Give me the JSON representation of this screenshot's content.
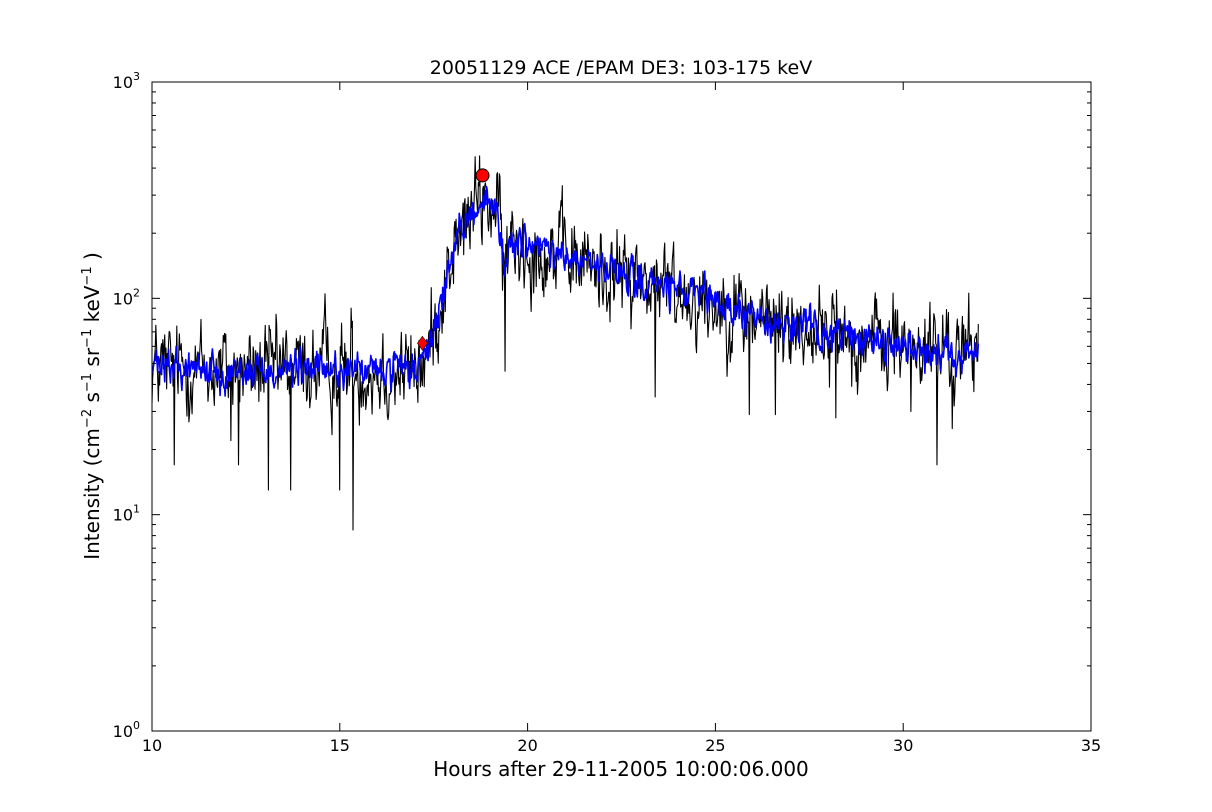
{
  "chart_data": {
    "type": "line",
    "title": "20051129 ACE /EPAM DE3: 103-175 keV",
    "xlabel": "Hours after 29-11-2005 10:00:06.000",
    "ylabel_parts": {
      "prefix": "Intensity (cm",
      "exp1": "−2",
      "s": " s",
      "exp2": "−1",
      "sr": " sr",
      "exp3": "−1",
      "kev": " keV",
      "exp4": "−1",
      "suffix": " )"
    },
    "xlim": [
      10,
      35
    ],
    "ylim": [
      1,
      1000
    ],
    "yscale": "log",
    "grid": false,
    "x_ticks": [
      "10",
      "15",
      "20",
      "25",
      "30",
      "35"
    ],
    "y_ticks": [
      {
        "base": "10",
        "exp": "0"
      },
      {
        "base": "10",
        "exp": "1"
      },
      {
        "base": "10",
        "exp": "2"
      },
      {
        "base": "10",
        "exp": "3"
      }
    ],
    "series": [
      {
        "color": "#000000",
        "role": "raw intensity",
        "envelope_points": [
          [
            10.0,
            48
          ],
          [
            11.0,
            48
          ],
          [
            12.0,
            46
          ],
          [
            13.0,
            47
          ],
          [
            14.0,
            47
          ],
          [
            15.0,
            47
          ],
          [
            16.0,
            46
          ],
          [
            17.0,
            46
          ],
          [
            17.3,
            52
          ],
          [
            17.5,
            72
          ],
          [
            17.8,
            115
          ],
          [
            18.0,
            160
          ],
          [
            18.3,
            210
          ],
          [
            18.5,
            250
          ],
          [
            18.8,
            290
          ],
          [
            19.0,
            275
          ],
          [
            19.2,
            240
          ],
          [
            19.4,
            140
          ],
          [
            19.6,
            190
          ],
          [
            20.0,
            175
          ],
          [
            20.5,
            165
          ],
          [
            21.0,
            155
          ],
          [
            22.0,
            135
          ],
          [
            23.0,
            120
          ],
          [
            24.0,
            108
          ],
          [
            25.0,
            95
          ],
          [
            26.0,
            82
          ],
          [
            27.0,
            75
          ],
          [
            28.0,
            70
          ],
          [
            29.0,
            65
          ],
          [
            30.0,
            60
          ],
          [
            31.0,
            57
          ],
          [
            32.0,
            55
          ]
        ],
        "noise_level": 0.18,
        "spikes": [
          [
            13.1,
            13
          ],
          [
            13.7,
            13
          ],
          [
            15.0,
            13
          ],
          [
            15.35,
            8.5
          ],
          [
            19.4,
            46
          ],
          [
            30.9,
            17
          ],
          [
            10.6,
            17
          ],
          [
            12.3,
            17
          ],
          [
            12.1,
            22
          ],
          [
            14.6,
            105
          ],
          [
            15.3,
            90
          ],
          [
            23.4,
            35
          ],
          [
            25.9,
            29
          ],
          [
            26.6,
            29
          ],
          [
            27.0,
            50
          ],
          [
            28.2,
            28
          ],
          [
            30.2,
            30
          ],
          [
            31.3,
            25
          ]
        ]
      },
      {
        "color": "#0000ff",
        "role": "smoothed intensity",
        "envelope_points": [
          [
            10.0,
            48
          ],
          [
            11.0,
            48
          ],
          [
            12.0,
            46
          ],
          [
            13.0,
            47
          ],
          [
            14.0,
            47
          ],
          [
            15.0,
            47
          ],
          [
            16.0,
            46
          ],
          [
            17.0,
            46
          ],
          [
            17.3,
            52
          ],
          [
            17.5,
            72
          ],
          [
            17.8,
            115
          ],
          [
            18.0,
            160
          ],
          [
            18.3,
            210
          ],
          [
            18.5,
            250
          ],
          [
            18.8,
            290
          ],
          [
            19.0,
            275
          ],
          [
            19.2,
            240
          ],
          [
            19.4,
            140
          ],
          [
            19.6,
            190
          ],
          [
            20.0,
            175
          ],
          [
            20.5,
            165
          ],
          [
            21.0,
            155
          ],
          [
            22.0,
            135
          ],
          [
            23.0,
            120
          ],
          [
            24.0,
            108
          ],
          [
            25.0,
            95
          ],
          [
            26.0,
            82
          ],
          [
            27.0,
            75
          ],
          [
            28.0,
            70
          ],
          [
            29.0,
            65
          ],
          [
            30.0,
            60
          ],
          [
            31.0,
            57
          ],
          [
            32.0,
            55
          ]
        ],
        "noise_level": 0.07
      }
    ],
    "markers": [
      {
        "shape": "circle",
        "color": "#ff0000",
        "x": 18.8,
        "y": 370
      },
      {
        "shape": "diamond",
        "color": "#ff0000",
        "x": 17.2,
        "y": 62
      }
    ],
    "x_range_data": [
      10.0,
      32.0
    ]
  }
}
